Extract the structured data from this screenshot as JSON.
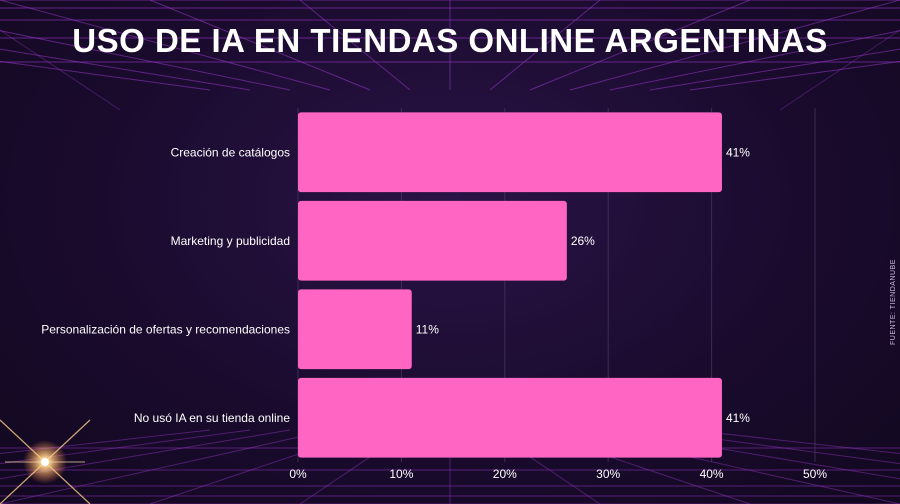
{
  "chart_data": {
    "type": "bar",
    "orientation": "horizontal",
    "title": "USO DE IA EN TIENDAS ONLINE ARGENTINAS",
    "categories": [
      "Creación de catálogos",
      "Marketing y publicidad",
      "Personalización de ofertas y recomendaciones",
      "No usó IA en su tienda online"
    ],
    "values": [
      41,
      26,
      11,
      41
    ],
    "value_labels": [
      "41%",
      "26%",
      "11%",
      "41%"
    ],
    "x_ticks": [
      0,
      10,
      20,
      30,
      40,
      50
    ],
    "x_tick_labels": [
      "0%",
      "10%",
      "20%",
      "30%",
      "40%",
      "50%"
    ],
    "xlim": [
      0,
      50
    ],
    "grid": true,
    "bar_color": "#ff66c4",
    "source": "FUENTE: TIENDANUBE"
  },
  "colors": {
    "background": "#1a0b2e",
    "grid_lines": "#a23bd6",
    "text": "#ffffff"
  }
}
